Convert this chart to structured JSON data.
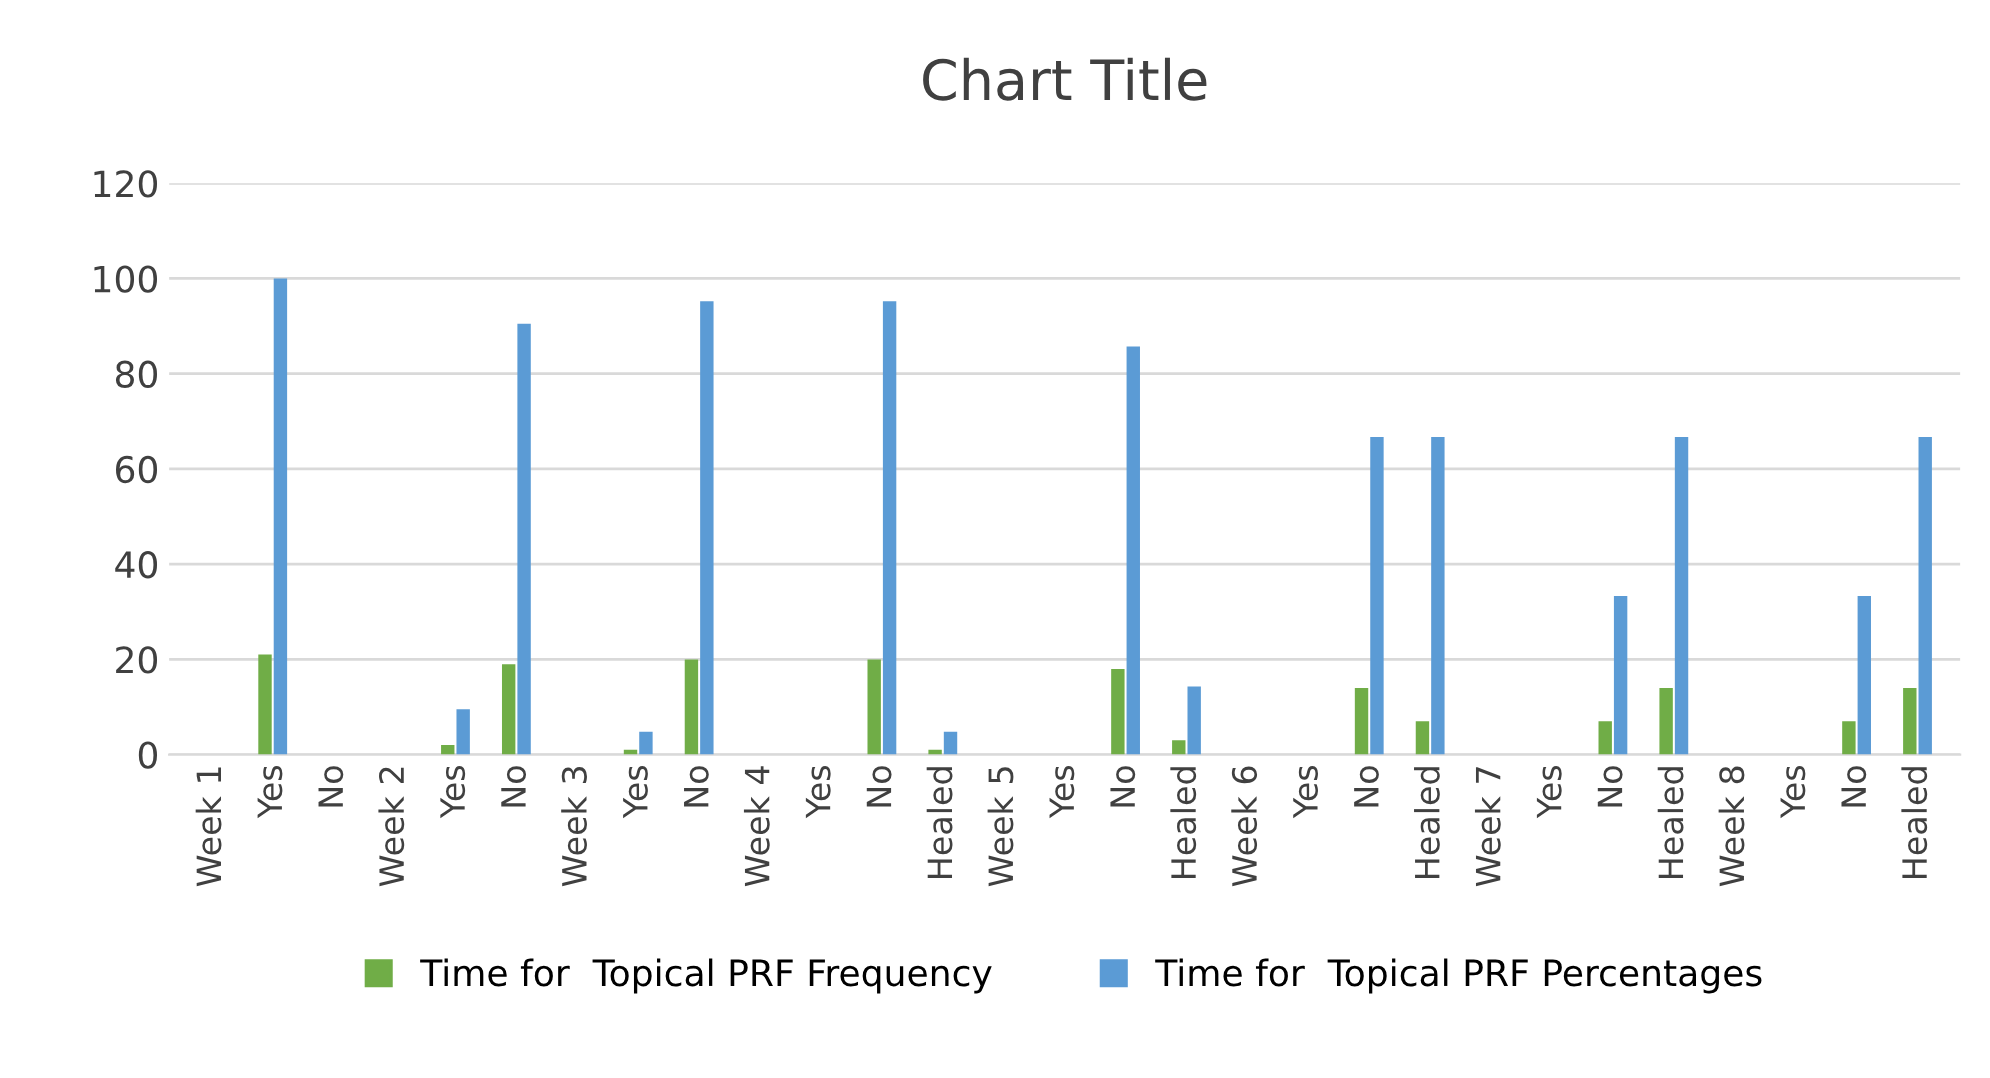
{
  "chart_data": {
    "type": "bar",
    "title": "Chart Title",
    "categories": [
      "Week 1",
      "Yes",
      "No",
      "Week 2",
      "Yes",
      "No",
      "Week 3",
      "Yes",
      "No",
      "Week 4",
      "Yes",
      "No",
      "Healed",
      "Week 5",
      "Yes",
      "No",
      "Healed",
      "Week 6",
      "Yes",
      "No",
      "Healed",
      "Week 7",
      "Yes",
      "No",
      "Healed",
      "Week 8",
      "Yes",
      "No",
      "Healed"
    ],
    "series": [
      {
        "name": "Time for  Topical PRF Frequency",
        "color": "#70ad47",
        "values": [
          null,
          21,
          null,
          null,
          2,
          19,
          null,
          1,
          20,
          null,
          null,
          20,
          1,
          null,
          null,
          18,
          3,
          null,
          null,
          14,
          7,
          null,
          null,
          7,
          14,
          null,
          null,
          7,
          14
        ]
      },
      {
        "name": "Time for  Topical PRF Percentages",
        "color": "#5b9bd5",
        "values": [
          null,
          100,
          null,
          null,
          9.5,
          90.5,
          null,
          4.8,
          95.2,
          null,
          null,
          95.2,
          4.8,
          null,
          null,
          85.7,
          14.3,
          null,
          null,
          66.7,
          66.7,
          null,
          null,
          33.3,
          66.7,
          null,
          null,
          33.3,
          66.7
        ]
      }
    ],
    "ylim": [
      0,
      120
    ],
    "yticks": [
      0,
      20,
      40,
      60,
      80,
      100,
      120
    ],
    "grid": "y",
    "legend": "bottom"
  }
}
